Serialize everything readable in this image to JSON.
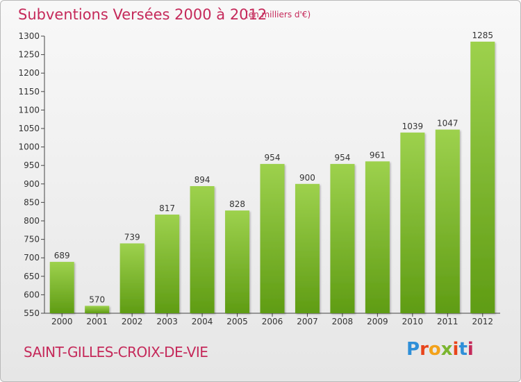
{
  "header": {
    "title": "Subventions Versées 2000 à 2012",
    "subtitle": "(en milliers d'€)"
  },
  "footer": {
    "commune": "SAINT-GILLES-CROIX-DE-VIE",
    "logo_text": "Proxiti",
    "logo_colors": [
      "#2f8fd8",
      "#e8441b",
      "#f3a21a",
      "#7bb52f",
      "#e8441b",
      "#2f8fd8",
      "#c5295a"
    ]
  },
  "colors": {
    "bar_top": "#9dd14d",
    "bar_bottom": "#5f9c14",
    "text": "#c5295a"
  },
  "chart_data": {
    "type": "bar",
    "categories": [
      "2000",
      "2001",
      "2002",
      "2003",
      "2004",
      "2005",
      "2006",
      "2007",
      "2008",
      "2009",
      "2010",
      "2011",
      "2012"
    ],
    "values": [
      689,
      570,
      739,
      817,
      894,
      828,
      954,
      900,
      954,
      961,
      1039,
      1047,
      1285
    ],
    "title": "Subventions Versées 2000 à 2012",
    "ylim": [
      550,
      1300
    ],
    "yticks": [
      550,
      600,
      650,
      700,
      750,
      800,
      850,
      900,
      950,
      1000,
      1050,
      1100,
      1150,
      1200,
      1250,
      1300
    ],
    "grid": false,
    "data_labels": true
  }
}
